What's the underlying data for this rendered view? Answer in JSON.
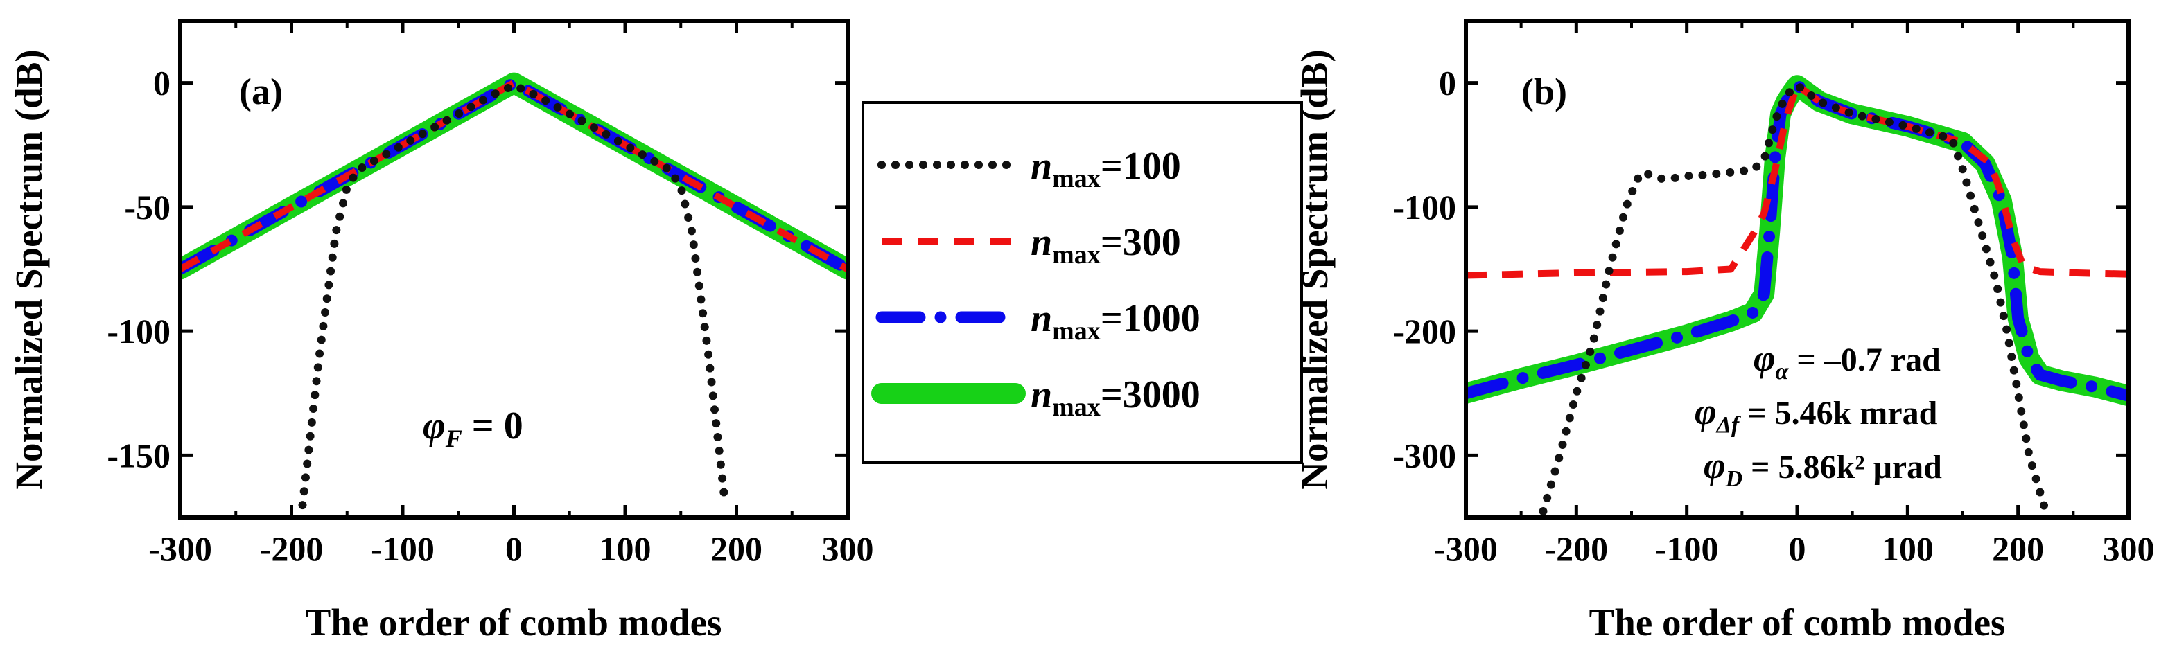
{
  "chart_data": [
    {
      "type": "line",
      "panel_label": "(a)",
      "xlabel": "The order of comb modes",
      "ylabel": "Normalized Spectrum (dB)",
      "xlim": [
        -300,
        300
      ],
      "ylim": [
        -175,
        25
      ],
      "xticks": [
        -300,
        -200,
        -100,
        0,
        100,
        200,
        300
      ],
      "xtick_labels": [
        "-300",
        "-200",
        "-100",
        "0",
        "100",
        "200",
        "300"
      ],
      "yticks": [
        0,
        -50,
        -100,
        -150
      ],
      "ytick_labels": [
        "0",
        "-50",
        "-100",
        "-150"
      ],
      "annotation": {
        "symbol": "φ",
        "sub": "F",
        "rest": " = 0"
      },
      "series": [
        {
          "name": "n_max=3000",
          "style": "green-thick",
          "x": [
            -300,
            -200,
            -100,
            0,
            100,
            200,
            300
          ],
          "y": [
            -75,
            -50,
            -25,
            0,
            -25,
            -50,
            -75
          ]
        },
        {
          "name": "n_max=1000",
          "style": "blue-dash-dot",
          "x": [
            -300,
            -200,
            -100,
            0,
            100,
            200,
            300
          ],
          "y": [
            -75,
            -50,
            -25,
            0,
            -25,
            -50,
            -75
          ]
        },
        {
          "name": "n_max=300",
          "style": "red-dash",
          "x": [
            -300,
            -200,
            -100,
            0,
            100,
            200,
            300
          ],
          "y": [
            -75,
            -50,
            -25,
            0,
            -25,
            -50,
            -75
          ]
        },
        {
          "name": "n_max=100",
          "style": "black-dot",
          "x": [
            -190,
            -175,
            -160,
            -150,
            -140,
            -120,
            -100,
            -80,
            -60,
            -40,
            -20,
            0,
            20,
            40,
            60,
            80,
            100,
            120,
            140,
            150,
            160,
            175,
            190
          ],
          "y": [
            -170,
            -110,
            -60,
            -42,
            -35,
            -30,
            -25,
            -20,
            -15,
            -10,
            -5,
            -1,
            -5,
            -10,
            -15,
            -20,
            -25,
            -30,
            -35,
            -42,
            -60,
            -110,
            -170
          ]
        }
      ]
    },
    {
      "type": "line",
      "panel_label": "(b)",
      "xlabel": "The order of comb modes",
      "ylabel": "Normalized Spectrum (dB)",
      "xlim": [
        -300,
        300
      ],
      "ylim": [
        -350,
        50
      ],
      "xticks": [
        -300,
        -200,
        -100,
        0,
        100,
        200,
        300
      ],
      "xtick_labels": [
        "-300",
        "-200",
        "-100",
        "0",
        "100",
        "200",
        "300"
      ],
      "yticks": [
        0,
        -100,
        -200,
        -300
      ],
      "ytick_labels": [
        "0",
        "-100",
        "-200",
        "-300"
      ],
      "annotations": [
        {
          "symbol": "φ",
          "sub": "α",
          "rest": " = –0.7 rad"
        },
        {
          "symbol": "φ",
          "sub": "Δf",
          "rest": " = 5.46k mrad"
        },
        {
          "symbol": "φ",
          "sub": "D",
          "rest": " = 5.86k² μrad"
        }
      ],
      "series": [
        {
          "name": "n_max=3000",
          "style": "green-thick",
          "x": [
            -300,
            -250,
            -200,
            -150,
            -100,
            -60,
            -40,
            -30,
            -25,
            -20,
            -15,
            -10,
            -5,
            0,
            20,
            50,
            100,
            150,
            170,
            185,
            195,
            200,
            205,
            210,
            220,
            240,
            270,
            300
          ],
          "y": [
            -250,
            -238,
            -227,
            -215,
            -203,
            -192,
            -185,
            -170,
            -120,
            -60,
            -25,
            -15,
            -8,
            -2,
            -15,
            -25,
            -35,
            -48,
            -65,
            -95,
            -140,
            -190,
            -205,
            -222,
            -235,
            -240,
            -245,
            -252
          ]
        },
        {
          "name": "n_max=1000",
          "style": "blue-dash-dot",
          "x": [
            -300,
            -250,
            -200,
            -150,
            -100,
            -60,
            -40,
            -30,
            -25,
            -20,
            -15,
            -10,
            -5,
            0,
            20,
            50,
            100,
            150,
            170,
            185,
            195,
            200,
            205,
            210,
            220,
            240,
            270,
            300
          ],
          "y": [
            -250,
            -238,
            -227,
            -215,
            -203,
            -192,
            -185,
            -170,
            -120,
            -60,
            -25,
            -15,
            -8,
            -2,
            -15,
            -25,
            -35,
            -48,
            -65,
            -95,
            -140,
            -190,
            -205,
            -222,
            -235,
            -240,
            -245,
            -252
          ]
        },
        {
          "name": "n_max=300",
          "style": "red-dash",
          "x": [
            -300,
            -200,
            -100,
            -60,
            -40,
            -30,
            -20,
            -10,
            0,
            20,
            50,
            100,
            150,
            175,
            185,
            195,
            205,
            220,
            250,
            300
          ],
          "y": [
            -155,
            -153,
            -152,
            -150,
            -122,
            -105,
            -70,
            -28,
            -2,
            -15,
            -25,
            -35,
            -48,
            -65,
            -90,
            -125,
            -148,
            -152,
            -153,
            -154
          ]
        },
        {
          "name": "n_max=100",
          "style": "black-dot",
          "x": [
            -230,
            -215,
            -200,
            -185,
            -170,
            -155,
            -145,
            -140,
            -120,
            -100,
            -80,
            -60,
            -40,
            -30,
            -20,
            -10,
            0,
            20,
            50,
            100,
            140,
            150,
            160,
            170,
            180,
            190,
            200,
            210,
            220,
            225
          ],
          "y": [
            -345,
            -300,
            -250,
            -210,
            -150,
            -100,
            -78,
            -72,
            -78,
            -75,
            -74,
            -72,
            -70,
            -62,
            -30,
            -10,
            -2,
            -15,
            -25,
            -35,
            -45,
            -70,
            -100,
            -130,
            -160,
            -200,
            -250,
            -300,
            -330,
            -345
          ]
        }
      ]
    }
  ],
  "legend": {
    "items": [
      {
        "var": "n",
        "sub": "max",
        "value": "=100",
        "style": "black-dot"
      },
      {
        "var": "n",
        "sub": "max",
        "value": "=300",
        "style": "red-dash"
      },
      {
        "var": "n",
        "sub": "max",
        "value": "=1000",
        "style": "blue-dash-dot"
      },
      {
        "var": "n",
        "sub": "max",
        "value": "=3000",
        "style": "green-thick"
      }
    ]
  },
  "colors": {
    "green": "#17d117",
    "blue": "#0a0aee",
    "red": "#ee1111",
    "black": "#111111"
  }
}
